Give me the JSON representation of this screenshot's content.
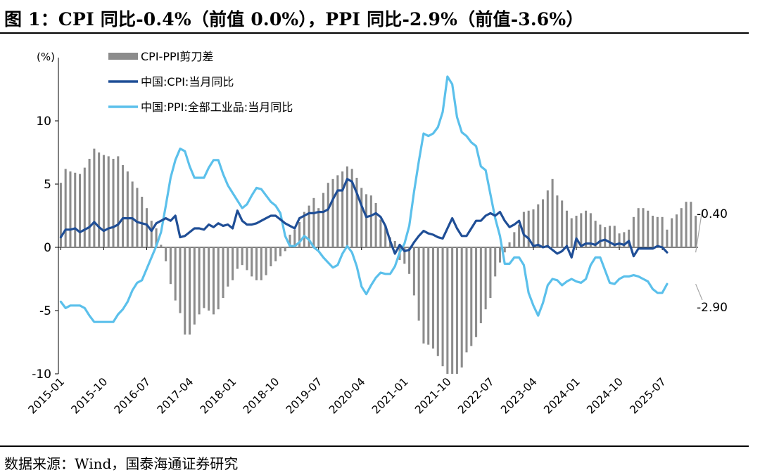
{
  "title": "图 1：CPI 同比-0.4%（前值 0.0%），PPI 同比-2.9%（前值-3.6%）",
  "source": "数据来源：Wind，国泰海通证券研究",
  "chart_data": {
    "type": "bar+line",
    "y_unit_label": "(%)",
    "ylim": [
      -10,
      15
    ],
    "yticks": [
      10,
      5,
      0,
      -5,
      -10
    ],
    "ytick_labels": [
      "10",
      "5",
      "0",
      "-5",
      "-10"
    ],
    "xtick_labels": [
      "2015-01",
      "2015-10",
      "2016-07",
      "2017-04",
      "2018-01",
      "2018-10",
      "2019-07",
      "2020-04",
      "2021-01",
      "2021-10",
      "2022-07",
      "2023-04",
      "2024-01",
      "2024-10",
      "2025-07"
    ],
    "x_start": "2015-01",
    "x_end": "2025-08",
    "legend_position": "top-left",
    "series": [
      {
        "name": "CPI-PPI剪刀差",
        "kind": "bar",
        "color": "#8c8c8c",
        "values": [
          5.1,
          6.2,
          6.0,
          5.9,
          5.8,
          6.3,
          7.0,
          7.8,
          7.5,
          7.3,
          7.2,
          7.0,
          7.2,
          6.5,
          6.0,
          5.2,
          4.7,
          4.0,
          3.1,
          2.1,
          1.5,
          0.2,
          -1.1,
          -2.9,
          -4.2,
          -5.2,
          -6.9,
          -6.9,
          -6.1,
          -5.3,
          -4.8,
          -5.0,
          -5.3,
          -4.9,
          -4.0,
          -3.1,
          -2.6,
          -1.7,
          -1.4,
          -1.8,
          -2.3,
          -2.6,
          -2.6,
          -2.2,
          -1.5,
          -1.1,
          -0.7,
          -0.3,
          1.0,
          1.4,
          2.0,
          2.8,
          3.3,
          3.9,
          3.1,
          4.3,
          5.1,
          5.4,
          5.7,
          6.0,
          6.4,
          6.2,
          5.5,
          4.7,
          4.2,
          4.1,
          3.5,
          2.2,
          1.7,
          0.8,
          0.5,
          -1.0,
          -1.3,
          -2.1,
          -3.8,
          -5.8,
          -7.6,
          -7.7,
          -8.0,
          -8.6,
          -9.4,
          -10.0,
          -10.0,
          -10.0,
          -9.5,
          -8.3,
          -7.8,
          -7.1,
          -6.0,
          -4.9,
          -4.0,
          -2.3,
          -1.2,
          -0.4,
          0.4,
          1.2,
          1.8,
          2.8,
          2.9,
          3.0,
          3.4,
          3.8,
          4.5,
          5.4,
          4.1,
          3.7,
          2.9,
          2.3,
          2.5,
          2.7,
          2.9,
          2.7,
          2.1,
          1.8,
          1.6,
          1.7,
          1.7,
          1.1,
          1.2,
          1.4,
          2.4,
          3.1,
          3.1,
          2.9,
          2.5,
          2.4,
          2.4,
          1.4,
          2.3,
          2.6,
          3.1,
          3.6,
          3.6,
          2.5
        ]
      },
      {
        "name": "中国:CPI:当月同比",
        "kind": "line",
        "color": "#1f4e96",
        "values": [
          0.8,
          1.4,
          1.4,
          1.5,
          1.2,
          1.4,
          1.6,
          2.0,
          1.6,
          1.3,
          1.5,
          1.6,
          1.8,
          2.3,
          2.3,
          2.3,
          2.0,
          1.9,
          1.8,
          1.3,
          1.9,
          2.1,
          2.3,
          2.1,
          2.5,
          0.8,
          0.9,
          1.2,
          1.5,
          1.5,
          1.4,
          1.8,
          1.6,
          1.9,
          1.7,
          1.8,
          1.5,
          2.9,
          2.1,
          1.8,
          1.8,
          1.9,
          2.1,
          2.3,
          2.5,
          2.5,
          2.2,
          1.9,
          1.7,
          1.5,
          2.3,
          2.5,
          2.7,
          2.7,
          2.8,
          2.8,
          3.0,
          3.8,
          4.5,
          4.5,
          5.4,
          5.2,
          4.3,
          3.3,
          2.4,
          2.5,
          2.7,
          2.4,
          1.7,
          0.5,
          -0.5,
          0.2,
          -0.3,
          -0.2,
          0.4,
          0.9,
          1.3,
          1.1,
          1.0,
          0.8,
          0.7,
          1.5,
          2.3,
          1.5,
          0.9,
          0.9,
          1.5,
          2.1,
          2.1,
          2.5,
          2.7,
          2.5,
          2.8,
          2.1,
          1.6,
          1.8,
          2.1,
          1.0,
          0.7,
          0.1,
          0.2,
          0.0,
          0.1,
          -0.2,
          -0.5,
          -0.3,
          0.1,
          -0.8,
          0.7,
          0.1,
          0.3,
          0.3,
          0.2,
          0.5,
          0.6,
          0.4,
          0.2,
          0.3,
          0.2,
          0.5,
          -0.7,
          -0.1,
          -0.1,
          -0.1,
          -0.1,
          0.1,
          0.0,
          -0.4
        ]
      },
      {
        "name": "中国:PPI:全部工业品:当月同比",
        "kind": "line",
        "color": "#5bc0eb",
        "values": [
          -4.3,
          -4.8,
          -4.6,
          -4.6,
          -4.6,
          -4.8,
          -5.4,
          -5.9,
          -5.9,
          -5.9,
          -5.9,
          -5.9,
          -5.3,
          -4.9,
          -4.3,
          -3.4,
          -2.8,
          -2.6,
          -1.7,
          -0.8,
          0.1,
          1.2,
          3.3,
          5.5,
          6.9,
          7.8,
          7.6,
          6.4,
          5.5,
          5.5,
          5.5,
          6.3,
          6.9,
          6.9,
          5.8,
          4.9,
          4.3,
          3.7,
          3.1,
          3.4,
          4.1,
          4.7,
          4.6,
          4.1,
          3.6,
          3.3,
          2.7,
          0.9,
          0.1,
          0.1,
          0.4,
          0.9,
          0.6,
          0,
          -0.3,
          -0.8,
          -1.2,
          -1.6,
          -1.4,
          -0.5,
          0.1,
          -0.4,
          -1.5,
          -3.1,
          -3.7,
          -3.0,
          -2.4,
          -2.0,
          -2.1,
          -2.1,
          -1.5,
          -0.4,
          0.3,
          1.7,
          4.4,
          6.8,
          9.0,
          8.8,
          9.0,
          9.5,
          10.7,
          13.5,
          12.9,
          10.3,
          9.1,
          8.8,
          8.3,
          8.0,
          6.4,
          6.1,
          4.2,
          2.3,
          0.9,
          -1.3,
          -1.3,
          -0.8,
          -0.8,
          -1.4,
          -3.6,
          -4.6,
          -5.4,
          -4.4,
          -3.0,
          -2.5,
          -2.6,
          -3.0,
          -2.7,
          -2.5,
          -2.7,
          -2.8,
          -2.5,
          -1.4,
          -0.8,
          -0.8,
          -1.8,
          -2.8,
          -2.9,
          -2.5,
          -2.3,
          -2.3,
          -2.2,
          -2.3,
          -2.5,
          -2.7,
          -3.3,
          -3.6,
          -3.6,
          -2.9
        ]
      }
    ],
    "annotations": [
      {
        "text": "-0.40",
        "series": "中国:CPI:当月同比",
        "value": -0.4
      },
      {
        "text": "-2.90",
        "series": "中国:PPI:全部工业品:当月同比",
        "value": -2.9
      }
    ]
  }
}
